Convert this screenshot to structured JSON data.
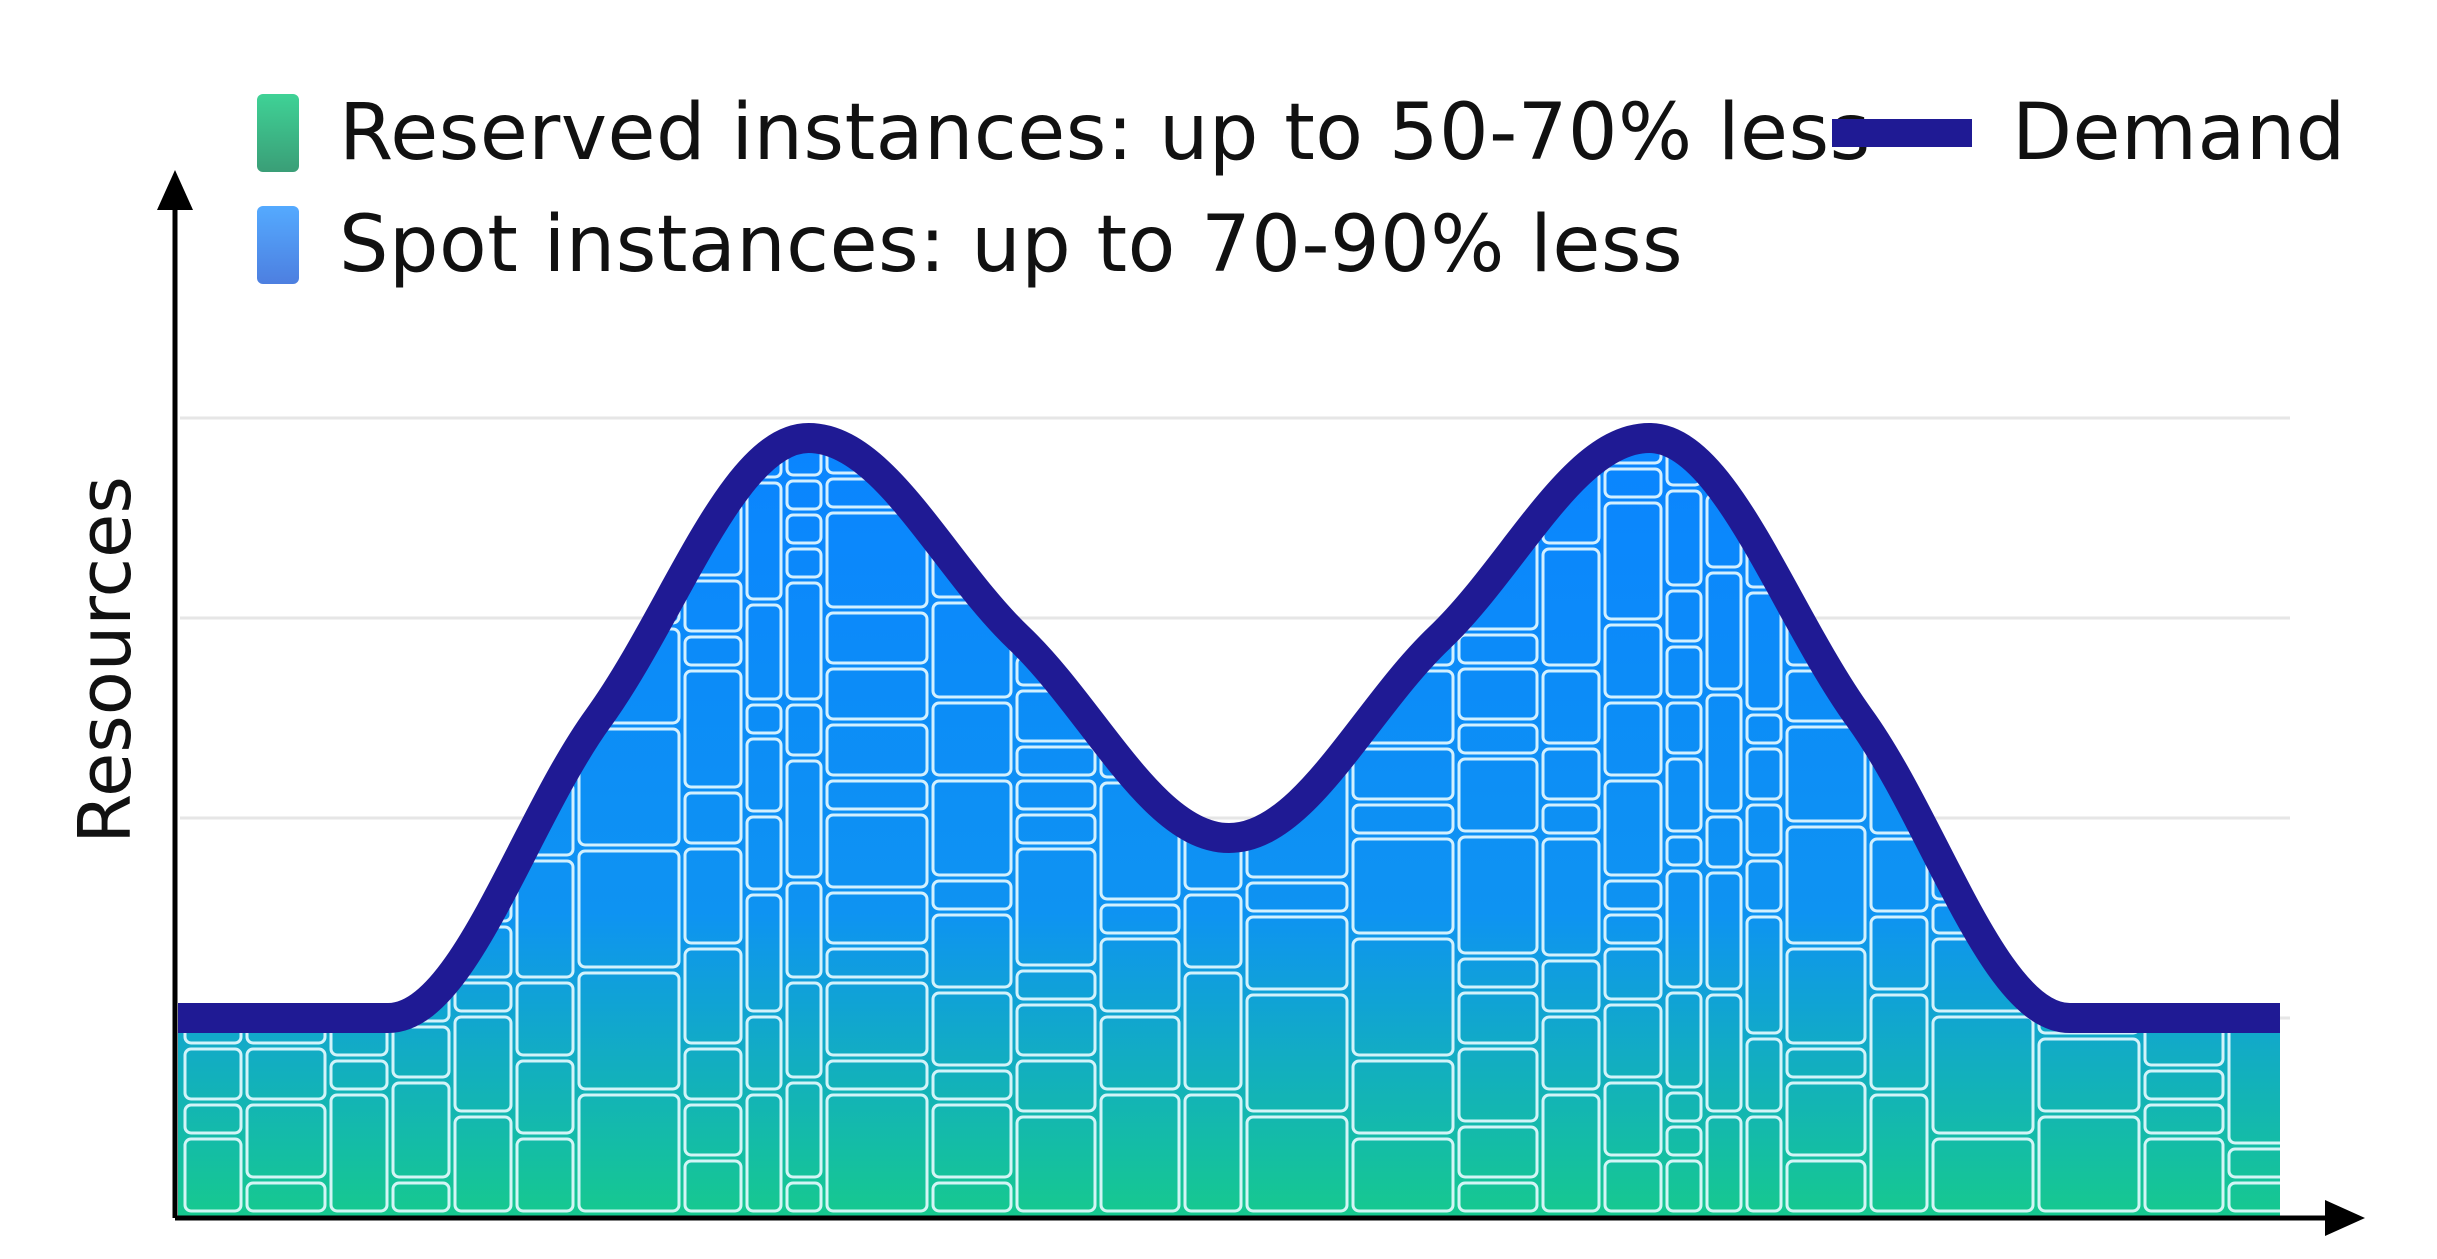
{
  "chart_data": {
    "type": "area",
    "title": "",
    "xlabel": "",
    "ylabel": "Resources",
    "grid": true,
    "legend_position": "top",
    "series": [
      {
        "name": "Reserved instances: up to 50-70% less",
        "kind": "area",
        "color_top": "#3fd296",
        "color_bottom": "#3a9e77"
      },
      {
        "name": "Spot instances: up to 70-90% less",
        "kind": "area",
        "color_top": "#54aaff",
        "color_bottom": "#4d7fe0"
      },
      {
        "name": "Demand",
        "kind": "line",
        "color": "#1f1a94"
      }
    ],
    "demand_curve": {
      "x": [
        0,
        10,
        20,
        30,
        40,
        50,
        60,
        70,
        80,
        90,
        100
      ],
      "y": [
        20,
        20,
        50,
        78,
        58,
        38,
        58,
        78,
        50,
        20,
        20
      ]
    }
  },
  "colors": {
    "demand_line": "#1f1a94",
    "fill_top": "#0a84ff",
    "fill_bottom": "#16c98f",
    "grid": "#e6e6e6",
    "axis": "#000000",
    "tile_stroke": "#e8fbff"
  }
}
